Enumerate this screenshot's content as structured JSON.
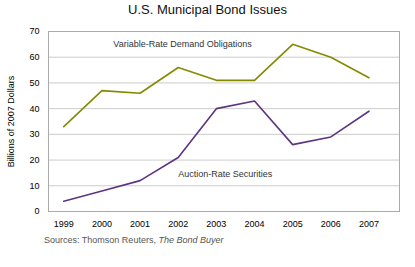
{
  "chart_data": {
    "type": "line",
    "title": "U.S. Municipal Bond Issues",
    "x": [
      1999,
      2000,
      2001,
      2002,
      2003,
      2004,
      2005,
      2006,
      2007
    ],
    "series": [
      {
        "color": "#848a00",
        "values": [
          33,
          47,
          46,
          56,
          51,
          51,
          65,
          60,
          52
        ]
      },
      {
        "color": "#5c3480",
        "values": [
          4,
          8,
          12,
          21,
          40,
          43,
          26,
          29,
          39
        ]
      }
    ],
    "ylabel": "Billions of 2007 Dollars",
    "xlim": [
      1998.6,
      2007.8
    ],
    "xticks": [
      1999,
      2000,
      2001,
      2002,
      2003,
      2004,
      2005,
      2006,
      2007
    ],
    "ylim": [
      0,
      70
    ],
    "yticks": [
      0,
      10,
      20,
      30,
      40,
      50,
      60,
      70
    ],
    "grid": true,
    "annotations": [
      {
        "text": "Variable-Rate Demand Obligations",
        "x": 2000.3,
        "y": 64
      },
      {
        "text": "Auction-Rate Securities",
        "x": 2002.0,
        "y": 16
      }
    ],
    "source": {
      "text": "Sources: Thomson Reuters, ",
      "italic": "The Bond Buyer"
    }
  }
}
